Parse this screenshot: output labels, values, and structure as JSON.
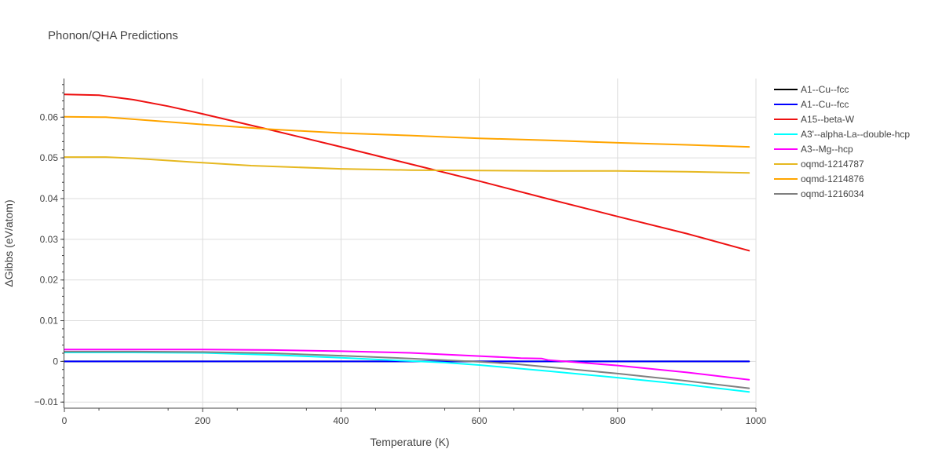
{
  "chart_data": {
    "type": "line",
    "title": "Phonon/QHA Predictions",
    "xlabel": "Temperature (K)",
    "ylabel": "ΔGibbs (eV/atom)",
    "xlim": [
      0,
      1000
    ],
    "ylim": [
      -0.0115,
      0.0695
    ],
    "x_ticks": [
      0,
      200,
      400,
      600,
      800,
      1000
    ],
    "x_tick_labels": [
      "0",
      "200",
      "400",
      "600",
      "800",
      "1000"
    ],
    "y_ticks": [
      -0.01,
      0,
      0.01,
      0.02,
      0.03,
      0.04,
      0.05,
      0.06
    ],
    "y_tick_labels": [
      "−0.01",
      "0",
      "0.01",
      "0.02",
      "0.03",
      "0.04",
      "0.05",
      "0.06"
    ],
    "grid": true,
    "legend_position": "right",
    "series": [
      {
        "name": "A1--Cu--fcc",
        "color": "#000000",
        "x": [
          0,
          990
        ],
        "y": [
          0.0,
          0.0
        ]
      },
      {
        "name": "A1--Cu--fcc",
        "color": "#0000ff",
        "x": [
          0,
          990
        ],
        "y": [
          0.0,
          0.0
        ]
      },
      {
        "name": "A15--beta-W",
        "color": "#ee1111",
        "x": [
          0,
          50,
          100,
          150,
          200,
          300,
          400,
          500,
          600,
          700,
          800,
          900,
          990
        ],
        "y": [
          0.0656,
          0.0654,
          0.0643,
          0.0627,
          0.0608,
          0.0568,
          0.0527,
          0.0485,
          0.0443,
          0.0399,
          0.0356,
          0.0314,
          0.0272
        ]
      },
      {
        "name": "A3'--alpha-La--double-hcp",
        "color": "#00ffff",
        "x": [
          0,
          100,
          200,
          300,
          400,
          500,
          550,
          600,
          700,
          800,
          900,
          990
        ],
        "y": [
          0.0022,
          0.0022,
          0.0021,
          0.0016,
          0.0009,
          0.0001,
          -0.0003,
          -0.0009,
          -0.0024,
          -0.004,
          -0.0057,
          -0.0075
        ]
      },
      {
        "name": "A3--Mg--hcp",
        "color": "#ff00ff",
        "x": [
          0,
          100,
          200,
          300,
          400,
          500,
          600,
          650,
          660,
          690,
          700,
          800,
          900,
          990
        ],
        "y": [
          0.0029,
          0.0029,
          0.0029,
          0.0028,
          0.0025,
          0.0021,
          0.0013,
          0.0009,
          0.0008,
          0.0007,
          0.0003,
          -0.001,
          -0.0027,
          -0.0045
        ]
      },
      {
        "name": "oqmd-1214787",
        "color": "#e6b820",
        "x": [
          0,
          60,
          100,
          200,
          270,
          400,
          500,
          600,
          700,
          800,
          900,
          990
        ],
        "y": [
          0.0502,
          0.0502,
          0.0499,
          0.0488,
          0.0481,
          0.0473,
          0.047,
          0.0469,
          0.0468,
          0.0468,
          0.0466,
          0.0463
        ]
      },
      {
        "name": "oqmd-1214876",
        "color": "#ffa500",
        "x": [
          0,
          60,
          100,
          200,
          300,
          400,
          500,
          600,
          700,
          800,
          900,
          990
        ],
        "y": [
          0.0601,
          0.06,
          0.0595,
          0.0582,
          0.057,
          0.0561,
          0.0555,
          0.0548,
          0.0543,
          0.0537,
          0.0532,
          0.0527
        ]
      },
      {
        "name": "oqmd-1216034",
        "color": "#808080",
        "x": [
          0,
          100,
          200,
          300,
          400,
          500,
          600,
          650,
          700,
          800,
          900,
          990
        ],
        "y": [
          0.0024,
          0.0024,
          0.0023,
          0.002,
          0.0014,
          0.0007,
          -0.0001,
          -0.0006,
          -0.0014,
          -0.003,
          -0.0048,
          -0.0066
        ]
      }
    ]
  }
}
